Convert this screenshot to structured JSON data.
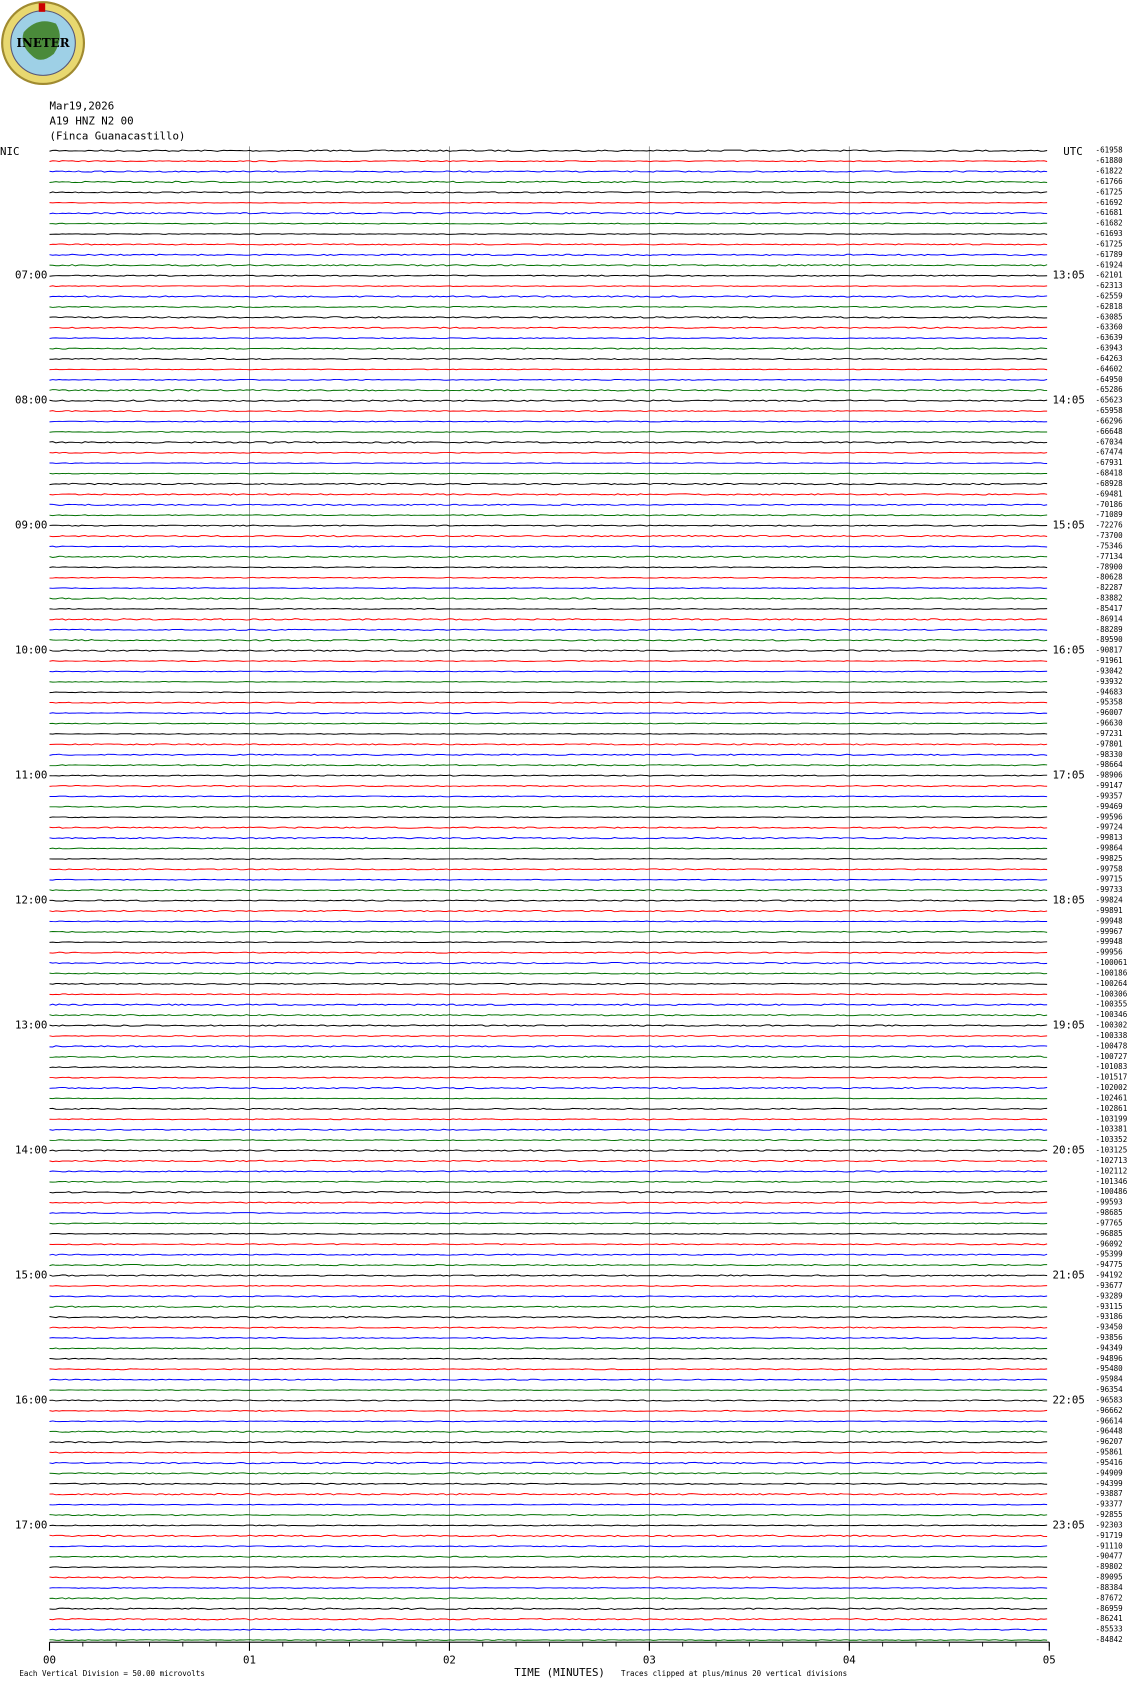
{
  "logo_text": "INETER",
  "header": {
    "date": "Mar19,2026",
    "station": "A19 HNZ N2 00",
    "location": "(Finca Guanacastillo)"
  },
  "left_zone": "NIC",
  "right_zone": "UTC",
  "left_hours": [
    "07:00",
    "08:00",
    "09:00",
    "10:00",
    "11:00",
    "12:00",
    "13:00",
    "14:00",
    "15:00",
    "16:00",
    "17:00"
  ],
  "right_hours": [
    "13:05",
    "14:05",
    "15:05",
    "16:05",
    "17:05",
    "18:05",
    "19:05",
    "20:05",
    "21:05",
    "22:05",
    "23:05"
  ],
  "trace_colors": [
    "#000000",
    "#ff0000",
    "#0000ff",
    "#007000"
  ],
  "trace_offsets": [
    -61958,
    -61880,
    -61822,
    -61766,
    -61725,
    -61692,
    -61681,
    -61682,
    -61693,
    -61725,
    -61789,
    -61924,
    -62101,
    -62313,
    -62559,
    -62818,
    -63085,
    -63360,
    -63639,
    -63943,
    -64263,
    -64602,
    -64950,
    -65286,
    -65623,
    -65958,
    -66296,
    -66648,
    -67034,
    -67474,
    -67931,
    -68418,
    -68928,
    -69481,
    -70186,
    -71089,
    -72276,
    -73700,
    -75346,
    -77134,
    -78900,
    -80628,
    -82287,
    -83882,
    -85417,
    -86914,
    -88289,
    -89590,
    -90817,
    -91961,
    -93042,
    -93932,
    -94683,
    -95358,
    -96007,
    -96630,
    -97231,
    -97801,
    -98330,
    -98664,
    -98906,
    -99147,
    -99357,
    -99469,
    -99596,
    -99724,
    -99813,
    -99864,
    -99825,
    -99758,
    -99715,
    -99733,
    -99824,
    -99891,
    -99948,
    -99967,
    -99948,
    -99956,
    -100061,
    -100186,
    -100264,
    -100306,
    -100355,
    -100346,
    -100302,
    -100338,
    -100478,
    -100727,
    -101083,
    -101517,
    -102002,
    -102461,
    -102861,
    -103199,
    -103381,
    -103352,
    -103125,
    -102713,
    -102112,
    -101346,
    -100486,
    -99593,
    -98685,
    -97765,
    -96885,
    -96092,
    -95399,
    -94775,
    -94192,
    -93677,
    -93289,
    -93115,
    -93186,
    -93450,
    -93856,
    -94349,
    -94896,
    -95480,
    -95984,
    -96354,
    -96583,
    -96662,
    -96614,
    -96448,
    -96207,
    -95861,
    -95416,
    -94909,
    -94399,
    -93887,
    -93377,
    -92855,
    -92303,
    -91719,
    -91110,
    -90477,
    -89802,
    -89095,
    -88384,
    -87672,
    -86959,
    -86241,
    -85533,
    -84842
  ],
  "x_ticks": [
    "00",
    "01",
    "02",
    "03",
    "04",
    "05"
  ],
  "x_title": "TIME (MINUTES)",
  "footer": {
    "division": "Each Vertical Division =   50.00 microvolts",
    "clipped": "Traces clipped at plus/minus 20 vertical divisions"
  }
}
